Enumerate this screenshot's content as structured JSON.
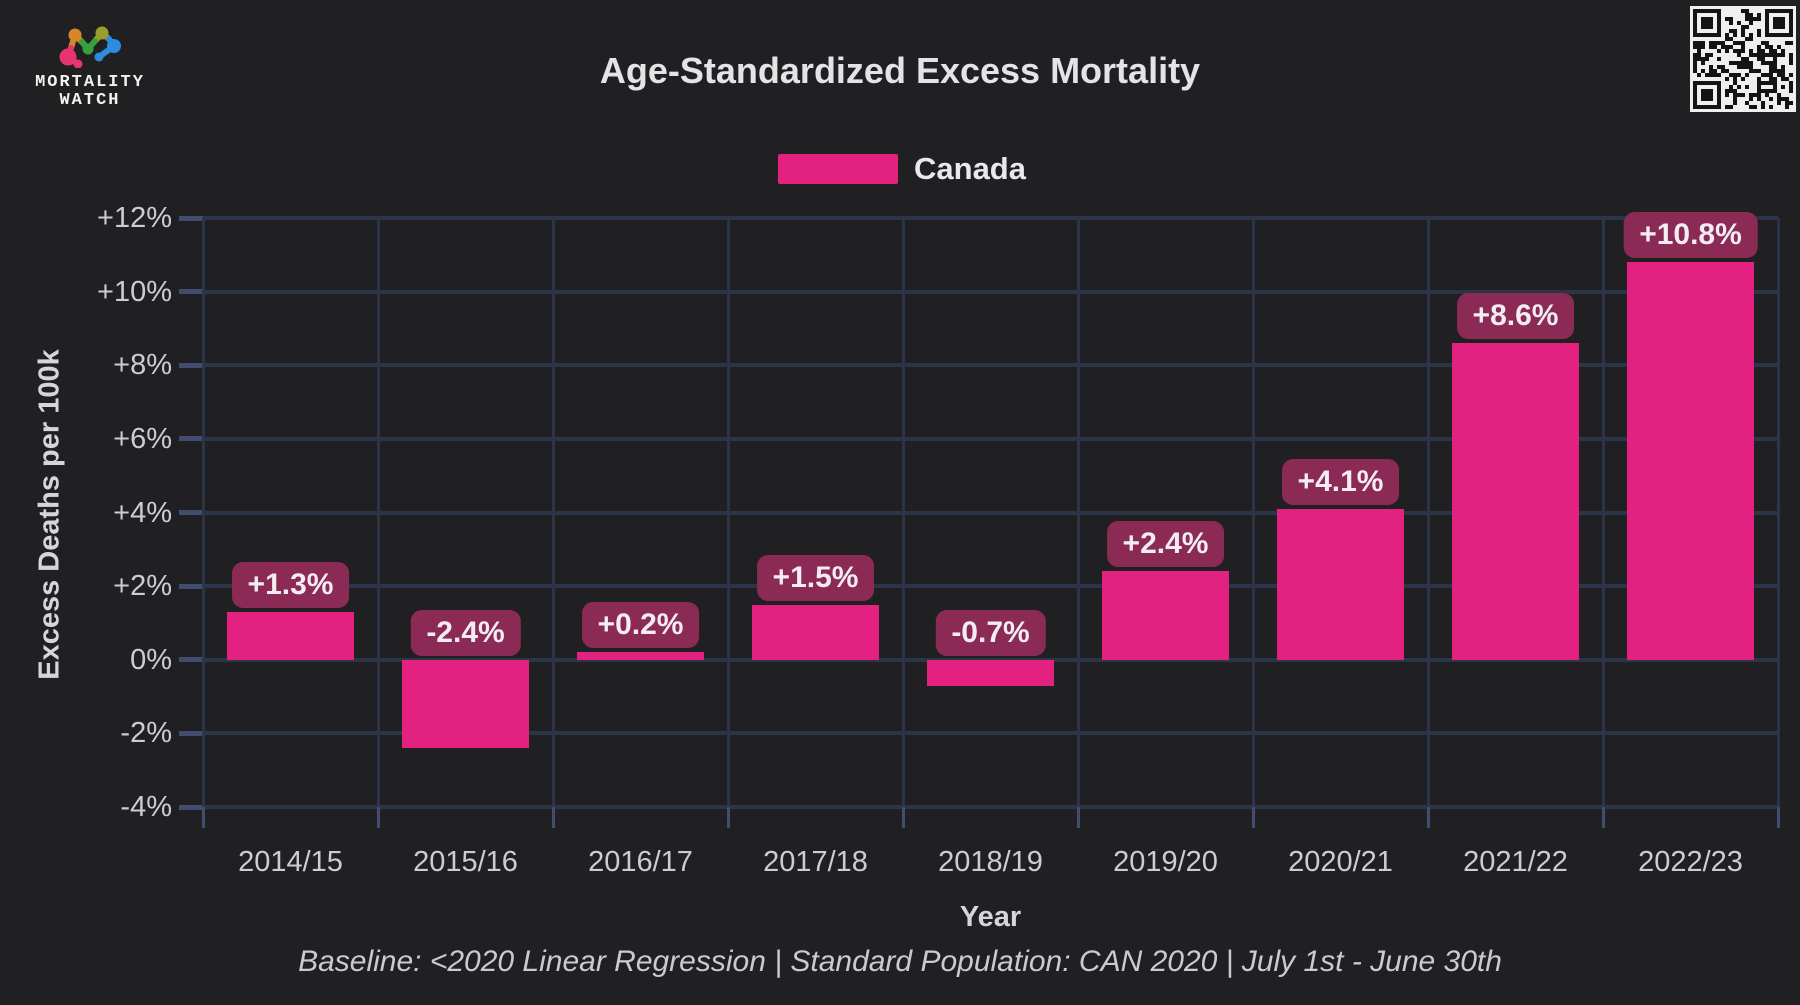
{
  "header": {
    "title": "Age-Standardized Excess Mortality"
  },
  "logo": {
    "line1": "MORTALITY",
    "line2": "WATCH",
    "icon": "mortality-watch-molecule-icon"
  },
  "qr": {
    "icon": "qr-code"
  },
  "legend": {
    "items": [
      {
        "label": "Canada",
        "color": "#e32180"
      }
    ]
  },
  "chart_data": {
    "type": "bar",
    "title": "Age-Standardized Excess Mortality",
    "categories": [
      "2014/15",
      "2015/16",
      "2016/17",
      "2017/18",
      "2018/19",
      "2019/20",
      "2020/21",
      "2021/22",
      "2022/23"
    ],
    "series": [
      {
        "name": "Canada",
        "color": "#e32180",
        "values": [
          1.3,
          -2.4,
          0.2,
          1.5,
          -0.7,
          2.4,
          4.1,
          8.6,
          10.8
        ],
        "value_labels": [
          "+1.3%",
          "-2.4%",
          "+0.2%",
          "+1.5%",
          "-0.7%",
          "+2.4%",
          "+4.1%",
          "+8.6%",
          "+10.8%"
        ]
      }
    ],
    "xlabel": "Year",
    "ylabel": "Excess Deaths per 100k",
    "ylim": [
      -4,
      12
    ],
    "yticks": [
      {
        "value": 12,
        "label": "+12%"
      },
      {
        "value": 10,
        "label": "+10%"
      },
      {
        "value": 8,
        "label": "+8%"
      },
      {
        "value": 6,
        "label": "+6%"
      },
      {
        "value": 4,
        "label": "+4%"
      },
      {
        "value": 2,
        "label": "+2%"
      },
      {
        "value": 0,
        "label": "0%"
      },
      {
        "value": -2,
        "label": "-2%"
      },
      {
        "value": -4,
        "label": "-4%"
      }
    ],
    "grid": true,
    "legend_position": "top-center",
    "value_label_bg": "#8b2a55",
    "gridline_color": "#2c3447"
  },
  "footer": {
    "text": "Baseline: <2020 Linear Regression | Standard Population: CAN 2020 | July 1st - June 30th"
  }
}
